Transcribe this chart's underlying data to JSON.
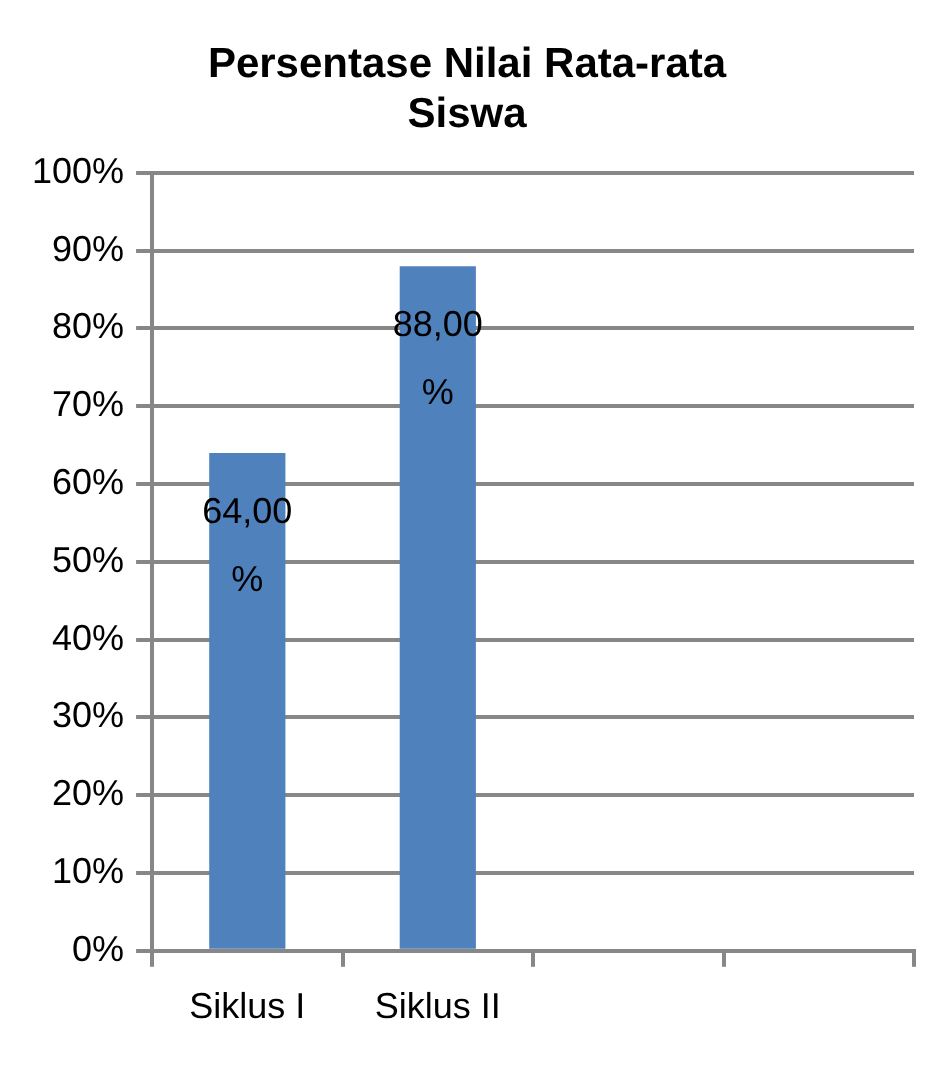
{
  "chart_data": {
    "type": "bar",
    "title": "Persentase Nilai Rata-rata Siswa",
    "categories": [
      "Siklus I",
      "Siklus II",
      null,
      null
    ],
    "values": [
      64,
      88,
      null,
      null
    ],
    "value_labels": [
      "64,00%",
      "88,00%",
      null,
      null
    ],
    "color": "#4f81bd",
    "ylim": [
      0,
      100
    ],
    "yticks": [
      {
        "value": 0,
        "label": "0%"
      },
      {
        "value": 10,
        "label": "10%"
      },
      {
        "value": 20,
        "label": "20%"
      },
      {
        "value": 30,
        "label": "30%"
      },
      {
        "value": 40,
        "label": "40%"
      },
      {
        "value": 50,
        "label": "50%"
      },
      {
        "value": 60,
        "label": "60%"
      },
      {
        "value": 70,
        "label": "70%"
      },
      {
        "value": 80,
        "label": "80%"
      },
      {
        "value": 90,
        "label": "90%"
      },
      {
        "value": 100,
        "label": "100%"
      }
    ],
    "grid": "y"
  }
}
